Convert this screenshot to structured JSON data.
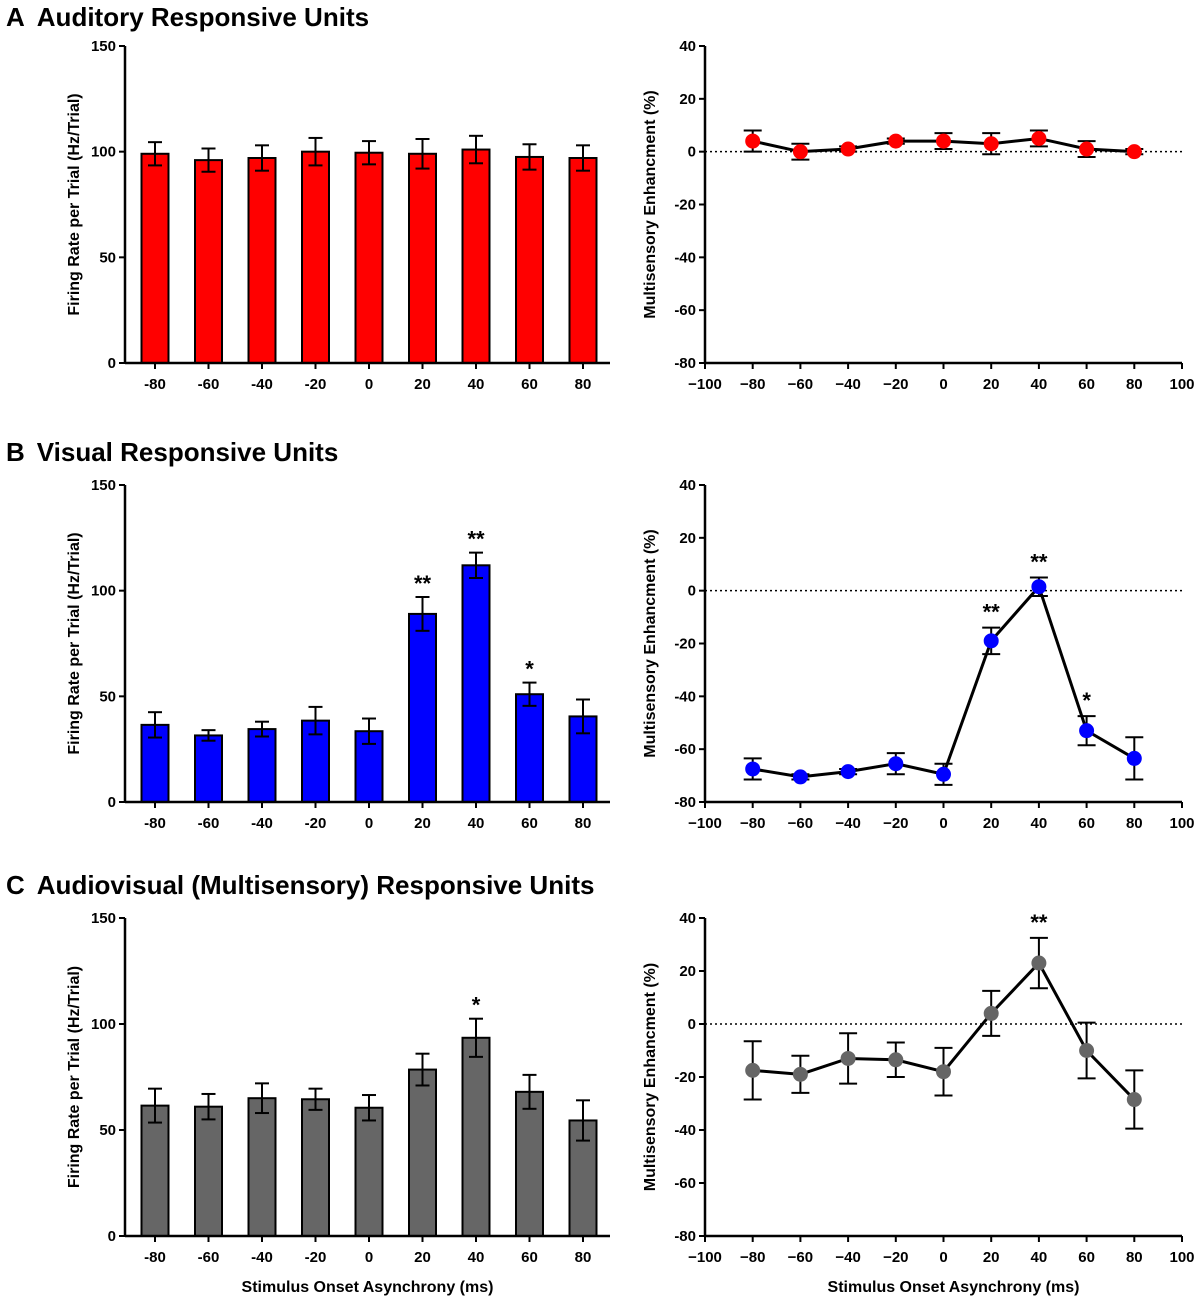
{
  "chart_data": [
    {
      "panel": "A",
      "title": "Auditory Responsive Units",
      "bar": {
        "type": "bar",
        "categories": [
          "-80",
          "-60",
          "-40",
          "-20",
          "0",
          "20",
          "40",
          "60",
          "80"
        ],
        "values": [
          99,
          96,
          97,
          100,
          99.5,
          99,
          101,
          97.5,
          97
        ],
        "errors": [
          5.5,
          5.5,
          6,
          6.5,
          5.5,
          7,
          6.5,
          6,
          6
        ],
        "significance": [
          "",
          "",
          "",
          "",
          "",
          "",
          "",
          "",
          ""
        ],
        "color": "#ff0000",
        "ylabel": "Firing Rate per Trial (Hz/Trial)",
        "xlabel": "",
        "ylim": [
          0,
          150
        ],
        "yticks": [
          0,
          50,
          100,
          150
        ]
      },
      "line": {
        "type": "line",
        "x": [
          -80,
          -60,
          -40,
          -20,
          0,
          20,
          40,
          60,
          80
        ],
        "values": [
          4,
          0,
          1,
          4,
          4,
          3,
          5,
          1,
          0
        ],
        "errors": [
          4,
          3,
          1,
          1,
          3,
          4,
          3,
          3,
          1
        ],
        "significance": [
          "",
          "",
          "",
          "",
          "",
          "",
          "",
          "",
          ""
        ],
        "color": "#ff0000",
        "ylabel": "Multisensory Enhancment (%)",
        "xlabel": "",
        "xlim": [
          -100,
          100
        ],
        "ylim": [
          -80,
          40
        ],
        "xticks": [
          -100,
          -80,
          -60,
          -40,
          -20,
          0,
          20,
          40,
          60,
          80,
          100
        ],
        "yticks": [
          -80,
          -60,
          -40,
          -20,
          0,
          20,
          40
        ],
        "reference_line": 0
      }
    },
    {
      "panel": "B",
      "title": "Visual Responsive Units",
      "bar": {
        "type": "bar",
        "categories": [
          "-80",
          "-60",
          "-40",
          "-20",
          "0",
          "20",
          "40",
          "60",
          "80"
        ],
        "values": [
          36.5,
          31.5,
          34.5,
          38.5,
          33.5,
          89,
          112,
          51,
          40.5
        ],
        "errors": [
          6,
          2.5,
          3.5,
          6.5,
          6,
          8,
          6,
          5.5,
          8
        ],
        "significance": [
          "",
          "",
          "",
          "",
          "",
          "**",
          "**",
          "*",
          ""
        ],
        "color": "#0000ff",
        "ylabel": "Firing Rate per Trial (Hz/Trial)",
        "xlabel": "",
        "ylim": [
          0,
          150
        ],
        "yticks": [
          0,
          50,
          100,
          150
        ]
      },
      "line": {
        "type": "line",
        "x": [
          -80,
          -60,
          -40,
          -20,
          0,
          20,
          40,
          60,
          80
        ],
        "values": [
          -67.5,
          -70.5,
          -68.5,
          -65.5,
          -69.5,
          -19,
          1.5,
          -53,
          -63.5
        ],
        "errors": [
          4,
          1,
          1,
          4,
          4,
          5,
          3.5,
          5.5,
          8
        ],
        "significance": [
          "",
          "",
          "",
          "",
          "",
          "**",
          "**",
          "*",
          ""
        ],
        "color": "#0000ff",
        "ylabel": "Multisensory Enhancment (%)",
        "xlabel": "",
        "xlim": [
          -100,
          100
        ],
        "ylim": [
          -80,
          40
        ],
        "xticks": [
          -100,
          -80,
          -60,
          -40,
          -20,
          0,
          20,
          40,
          60,
          80,
          100
        ],
        "yticks": [
          -80,
          -60,
          -40,
          -20,
          0,
          20,
          40
        ],
        "reference_line": 0
      }
    },
    {
      "panel": "C",
      "title": "Audiovisual (Multisensory) Responsive Units",
      "bar": {
        "type": "bar",
        "categories": [
          "-80",
          "-60",
          "-40",
          "-20",
          "0",
          "20",
          "40",
          "60",
          "80"
        ],
        "values": [
          61.5,
          61,
          65,
          64.5,
          60.5,
          78.5,
          93.5,
          68,
          54.5
        ],
        "errors": [
          8,
          6,
          7,
          5,
          6,
          7.5,
          9,
          8,
          9.5
        ],
        "significance": [
          "",
          "",
          "",
          "",
          "",
          "",
          "*",
          "",
          ""
        ],
        "color": "#666666",
        "ylabel": "Firing Rate per Trial (Hz/Trial)",
        "xlabel": "Stimulus Onset Asynchrony (ms)",
        "ylim": [
          0,
          150
        ],
        "yticks": [
          0,
          50,
          100,
          150
        ]
      },
      "line": {
        "type": "line",
        "x": [
          -80,
          -60,
          -40,
          -20,
          0,
          20,
          40,
          60,
          80
        ],
        "values": [
          -17.5,
          -19,
          -13,
          -13.5,
          -18,
          4,
          23,
          -10,
          -28.5
        ],
        "errors": [
          11,
          7,
          9.5,
          6.5,
          9,
          8.5,
          9.5,
          10.5,
          11
        ],
        "significance": [
          "",
          "",
          "",
          "",
          "",
          "",
          "**",
          "",
          ""
        ],
        "color": "#666666",
        "ylabel": "Multisensory Enhancment (%)",
        "xlabel": "Stimulus Onset Asynchrony (ms)",
        "xlim": [
          -100,
          100
        ],
        "ylim": [
          -80,
          40
        ],
        "xticks": [
          -100,
          -80,
          -60,
          -40,
          -20,
          0,
          20,
          40,
          60,
          80,
          100
        ],
        "yticks": [
          -80,
          -60,
          -40,
          -20,
          0,
          20,
          40
        ],
        "reference_line": 0
      }
    }
  ]
}
